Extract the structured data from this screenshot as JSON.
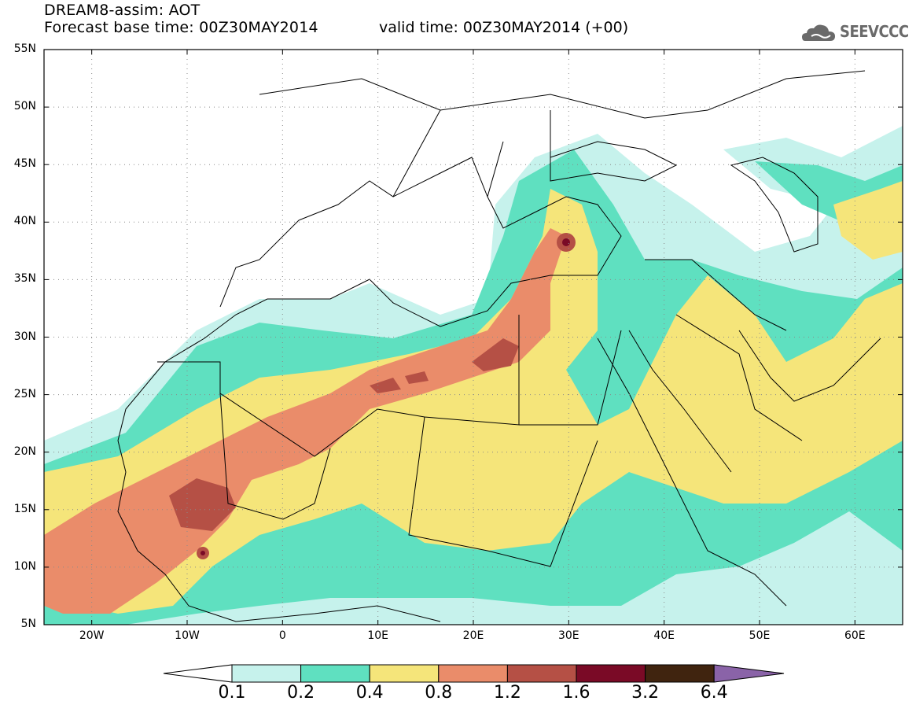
{
  "header": {
    "line1": "DREAM8-assim: AOT",
    "line2": "Forecast base time: 00Z30MAY2014",
    "valid": "valid time: 00Z30MAY2014 (+00)",
    "logo_text": "SEEVCCC",
    "logo_icon": "cloud-icon"
  },
  "map": {
    "lon_range": [
      -25,
      65
    ],
    "lat_range": [
      5,
      55
    ],
    "lat_labels": [
      "55N",
      "50N",
      "45N",
      "40N",
      "35N",
      "30N",
      "25N",
      "20N",
      "15N",
      "10N",
      "5N"
    ],
    "lat_values": [
      55,
      50,
      45,
      40,
      35,
      30,
      25,
      20,
      15,
      10,
      5
    ],
    "lon_labels": [
      "20W",
      "10W",
      "0",
      "10E",
      "20E",
      "30E",
      "40E",
      "50E",
      "60E"
    ],
    "lon_values": [
      -20,
      -10,
      0,
      10,
      20,
      30,
      40,
      50,
      60
    ]
  },
  "colorbar": {
    "levels": [
      "0.1",
      "0.2",
      "0.4",
      "0.8",
      "1.2",
      "1.6",
      "3.2",
      "6.4"
    ],
    "colors": [
      "#c6f2ec",
      "#5fe0c0",
      "#f5e57a",
      "#ea8c6a",
      "#b55045",
      "#7a0a26",
      "#40240f"
    ],
    "low_color": "#ffffff",
    "high_color": "#8a63a8"
  }
}
